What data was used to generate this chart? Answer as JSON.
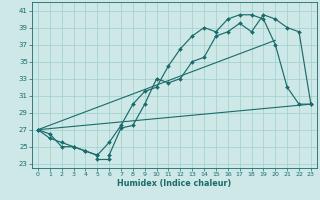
{
  "xlabel": "Humidex (Indice chaleur)",
  "bg_color": "#cde8e6",
  "grid_color": "#9fcfcc",
  "line_color": "#1a6b6b",
  "xlim": [
    -0.5,
    23.5
  ],
  "ylim": [
    22.5,
    42.0
  ],
  "xticks": [
    0,
    1,
    2,
    3,
    4,
    5,
    6,
    7,
    8,
    9,
    10,
    11,
    12,
    13,
    14,
    15,
    16,
    17,
    18,
    19,
    20,
    21,
    22,
    23
  ],
  "yticks": [
    23,
    25,
    27,
    29,
    31,
    33,
    35,
    37,
    39,
    41
  ],
  "curve1_x": [
    0,
    1,
    2,
    3,
    4,
    5,
    5,
    6,
    6,
    7,
    8,
    9,
    10,
    11,
    12,
    13,
    14,
    15,
    16,
    17,
    18,
    19,
    20,
    21,
    22,
    23
  ],
  "curve1_y": [
    27,
    26,
    25.5,
    25,
    24.5,
    24,
    23.5,
    23.5,
    24,
    27.2,
    27.5,
    30,
    33,
    32.5,
    33,
    35,
    35.5,
    38,
    38.5,
    39.5,
    38.5,
    40.5,
    40,
    39,
    38.5,
    30
  ],
  "curve2_x": [
    0,
    1,
    2,
    3,
    4,
    5,
    6,
    7,
    8,
    9,
    10,
    11,
    12,
    13,
    14,
    15,
    16,
    17,
    18,
    19,
    20,
    21,
    22,
    23
  ],
  "curve2_y": [
    27,
    26.5,
    25,
    25,
    24.5,
    24,
    25.5,
    27.5,
    30,
    31.5,
    32,
    34.5,
    36.5,
    38,
    39,
    38.5,
    40,
    40.5,
    40.5,
    40,
    37,
    32,
    30,
    30
  ],
  "line3_x": [
    0,
    23
  ],
  "line3_y": [
    27,
    30
  ],
  "line4_x": [
    0,
    20
  ],
  "line4_y": [
    27,
    37.5
  ]
}
